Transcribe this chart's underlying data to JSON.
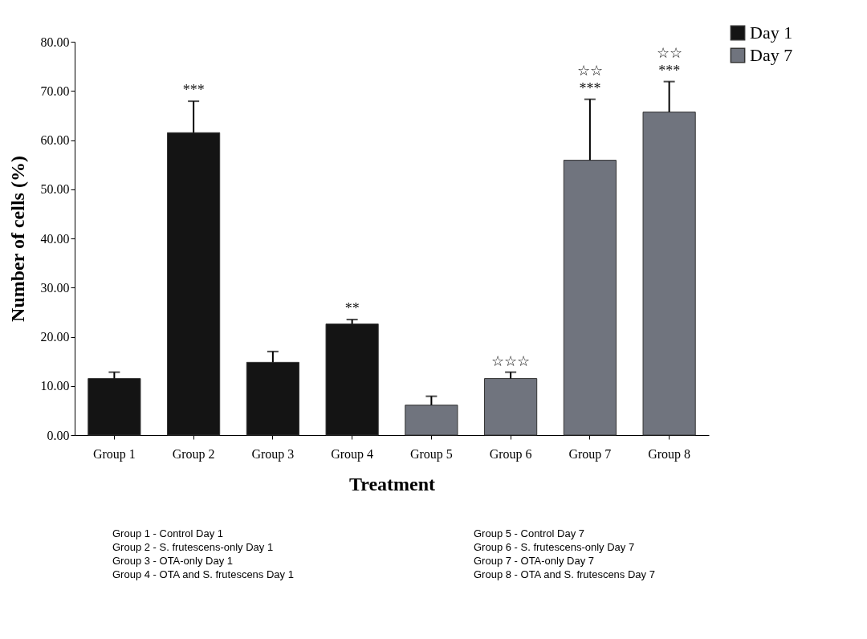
{
  "chart_data": {
    "type": "bar",
    "xlabel": "Treatment",
    "ylabel": "Number of cells (%)",
    "categories": [
      "Group 1",
      "Group 2",
      "Group 3",
      "Group 4",
      "Group 5",
      "Group 6",
      "Group 7",
      "Group 8"
    ],
    "series": [
      {
        "name": "Day 1",
        "color": "#141414",
        "values": [
          11.5,
          61.5,
          14.8,
          22.6,
          null,
          null,
          null,
          null
        ],
        "errors": [
          [
            11.5,
            12.8
          ],
          [
            61.5,
            67.9
          ],
          [
            14.8,
            17.0
          ],
          [
            22.6,
            23.5
          ],
          null,
          null,
          null,
          null
        ]
      },
      {
        "name": "Day 7",
        "color": "#70747e",
        "values": [
          null,
          null,
          null,
          null,
          6.1,
          11.5,
          55.9,
          65.7
        ],
        "errors": [
          null,
          null,
          null,
          null,
          [
            6.1,
            7.9
          ],
          [
            11.5,
            12.8
          ],
          [
            55.9,
            68.3
          ],
          [
            65.7,
            71.9
          ]
        ]
      }
    ],
    "ylim": [
      0,
      80
    ],
    "yticks": [
      {
        "value": 0,
        "label": "0.00"
      },
      {
        "value": 10,
        "label": "10.00"
      },
      {
        "value": 20,
        "label": "20.00"
      },
      {
        "value": 30,
        "label": "30.00"
      },
      {
        "value": 40,
        "label": "40.00"
      },
      {
        "value": 50,
        "label": "50.00"
      },
      {
        "value": 60,
        "label": "60.00"
      },
      {
        "value": 70,
        "label": "70.00"
      },
      {
        "value": 80,
        "label": "80.00"
      }
    ],
    "grid": false,
    "legend": "top right",
    "annotations": [
      {
        "text": "***",
        "x": "Group 2",
        "y": 67.9
      },
      {
        "text": "**",
        "x": "Group 4",
        "y": 23.5
      },
      {
        "text": "☆☆☆",
        "x": "Group 6",
        "y": 12.8
      },
      {
        "text": "***",
        "x": "Group 7",
        "y": 68.3
      },
      {
        "text": "☆☆",
        "x": "Group 7",
        "y": 68.3
      },
      {
        "text": "***",
        "x": "Group 8",
        "y": 71.9
      },
      {
        "text": "☆☆",
        "x": "Group 8",
        "y": 71.9
      },
      "Group 1 - Control Day 1",
      "Group 2 - S. frutescens-only Day 1",
      "Group 3 - OTA-only Day 1",
      "Group 4 - OTA and S. frutescens Day 1",
      "Group 5 - Control Day 7",
      "Group 6 - S. frutescens-only Day 7",
      "Group 7 - OTA-only Day 7",
      "Group 8 - OTA and S. frutescens Day 7"
    ]
  }
}
